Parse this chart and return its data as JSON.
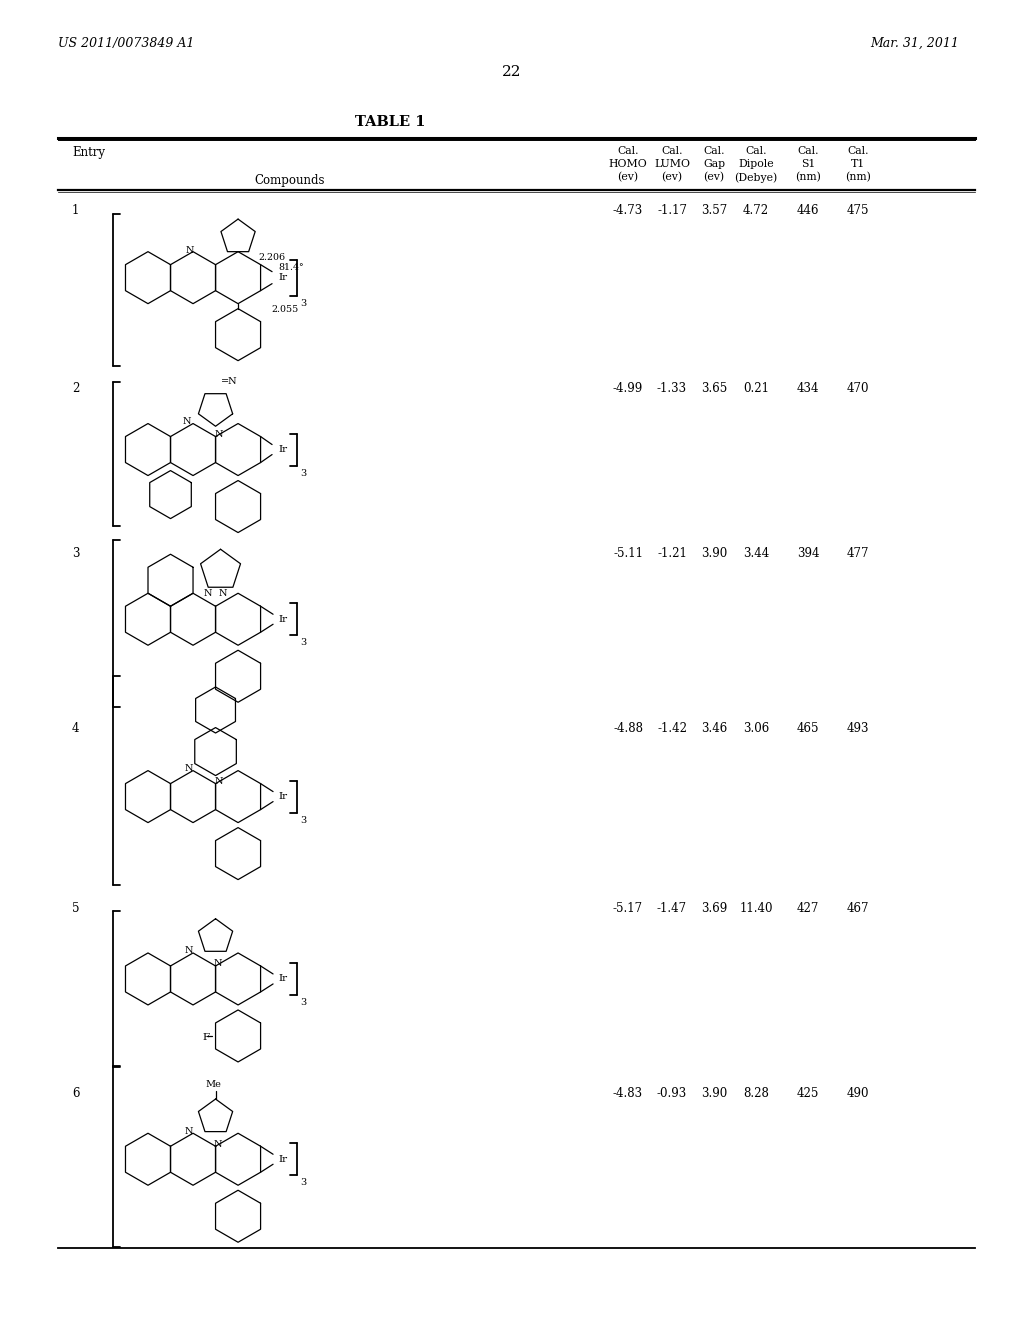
{
  "page_number": "22",
  "patent_number": "US 2011/0073849 A1",
  "patent_date": "Mar. 31, 2011",
  "table_title": "TABLE 1",
  "entry_label": "Entry",
  "compounds_label": "Compounds",
  "col_headers": [
    [
      "Cal.",
      "HOMO",
      "(ev)"
    ],
    [
      "Cal.",
      "LUMO",
      "(ev)"
    ],
    [
      "Cal.",
      "Gap",
      "(ev)"
    ],
    [
      "Cal.",
      "Dipole",
      "(Debye)"
    ],
    [
      "Cal.",
      "S1",
      "(nm)"
    ],
    [
      "Cal.",
      "T1",
      "(nm)"
    ]
  ],
  "entries": [
    {
      "entry": "1",
      "vals": [
        "-4.73",
        "-1.17",
        "3.57",
        "4.72",
        "446",
        "475"
      ]
    },
    {
      "entry": "2",
      "vals": [
        "-4.99",
        "-1.33",
        "3.65",
        "0.21",
        "434",
        "470"
      ]
    },
    {
      "entry": "3",
      "vals": [
        "-5.11",
        "-1.21",
        "3.90",
        "3.44",
        "394",
        "477"
      ]
    },
    {
      "entry": "4",
      "vals": [
        "-4.88",
        "-1.42",
        "3.46",
        "3.06",
        "465",
        "493"
      ]
    },
    {
      "entry": "5",
      "vals": [
        "-5.17",
        "-1.47",
        "3.69",
        "11.40",
        "427",
        "467"
      ]
    },
    {
      "entry": "6",
      "vals": [
        "-4.83",
        "-0.93",
        "3.90",
        "8.28",
        "425",
        "490"
      ]
    }
  ]
}
